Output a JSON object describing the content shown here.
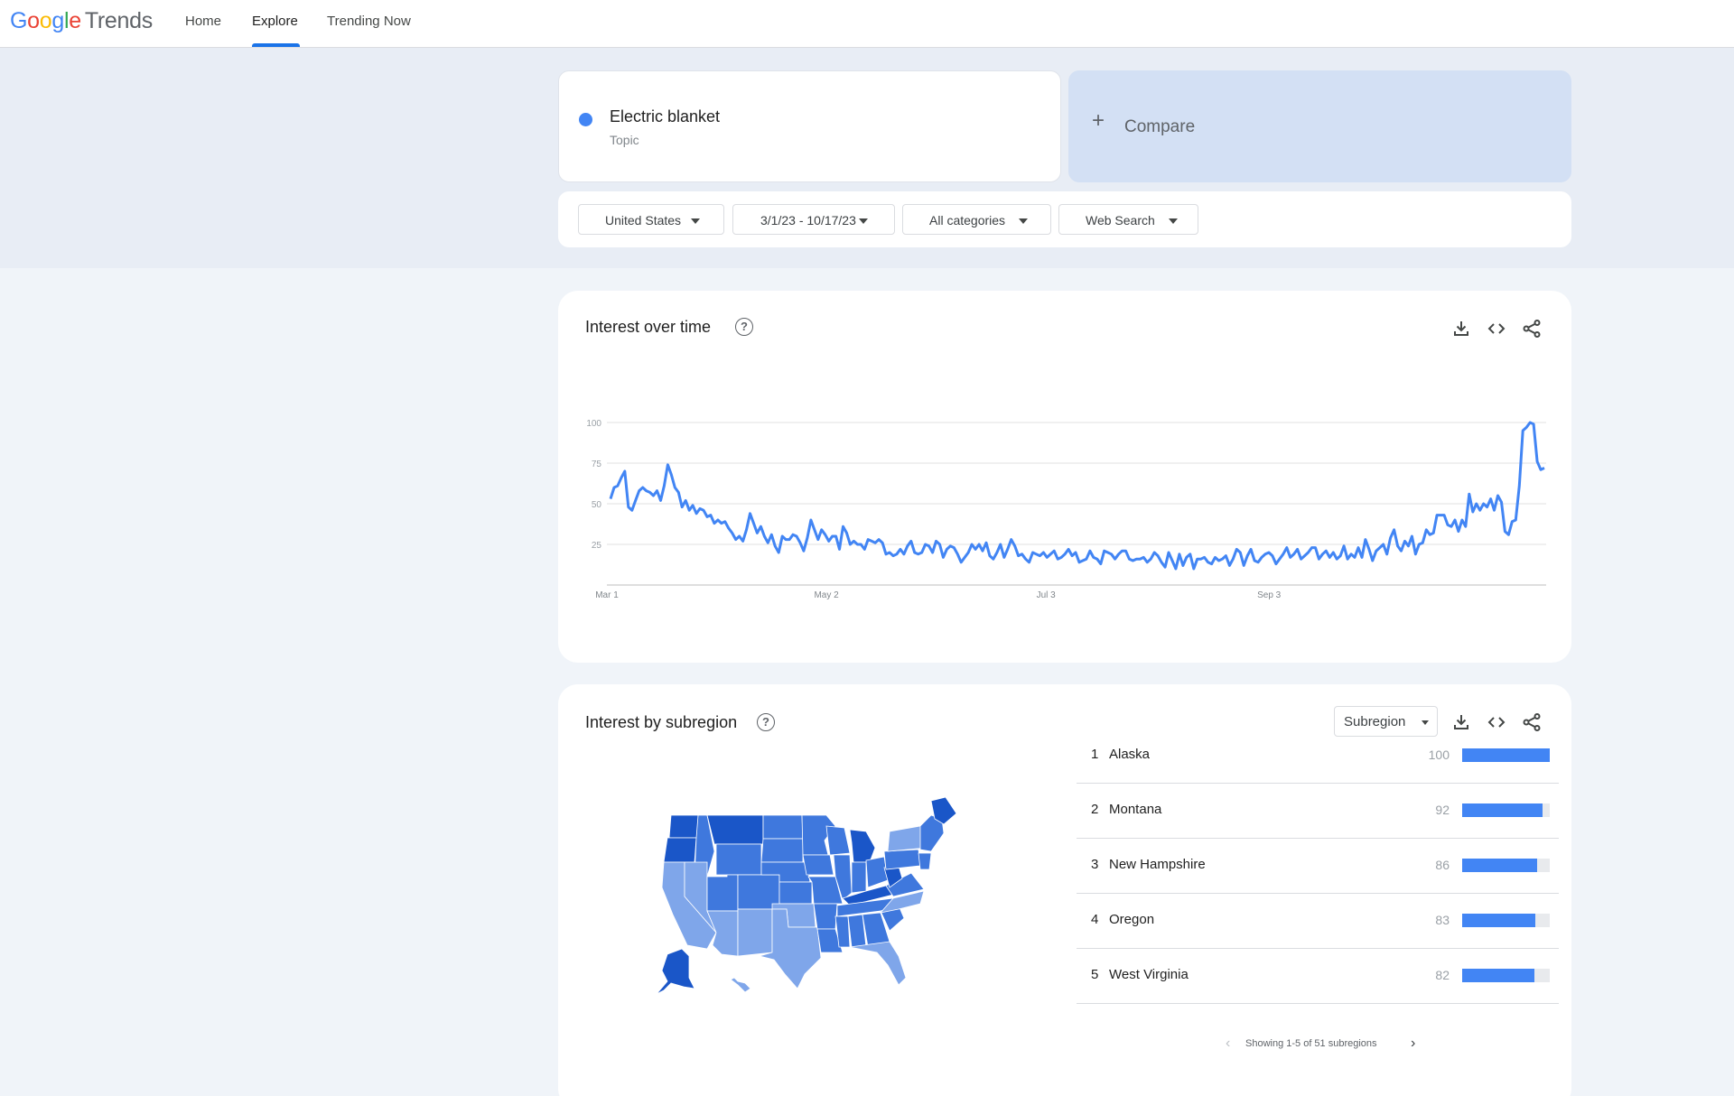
{
  "header": {
    "logo_google": "Google",
    "logo_product": "Trends",
    "nav": [
      "Home",
      "Explore",
      "Trending Now"
    ],
    "active_tab": "Explore"
  },
  "search": {
    "term": "Electric blanket",
    "term_type": "Topic",
    "term_color": "#4285f4",
    "compare_label": "Compare"
  },
  "filters": {
    "region": "United States",
    "date_range": "3/1/23 - 10/17/23",
    "category": "All categories",
    "search_type": "Web Search"
  },
  "interest_over_time": {
    "title": "Interest over time",
    "tools": [
      "download-icon",
      "embed-icon",
      "share-icon"
    ]
  },
  "chart_data": {
    "type": "line",
    "series": [
      {
        "color": "#4285f4",
        "values": [
          53,
          60,
          61,
          66,
          70,
          48,
          46,
          52,
          58,
          60,
          58,
          57,
          55,
          58,
          52,
          61,
          74,
          68,
          60,
          57,
          48,
          52,
          46,
          49,
          44,
          47,
          46,
          42,
          43,
          38,
          40,
          38,
          39,
          35,
          32,
          28,
          30,
          27,
          34,
          44,
          38,
          32,
          36,
          30,
          26,
          31,
          24,
          20,
          30,
          28,
          28,
          31,
          30,
          26,
          21,
          29,
          40,
          34,
          28,
          34,
          31,
          27,
          30,
          30,
          22,
          36,
          32,
          25,
          27,
          25,
          25,
          22,
          28,
          27,
          26,
          28,
          26,
          19,
          20,
          18,
          19,
          22,
          19,
          24,
          27,
          20,
          19,
          20,
          25,
          24,
          20,
          27,
          25,
          17,
          22,
          24,
          23,
          19,
          14,
          17,
          20,
          25,
          22,
          25,
          21,
          26,
          18,
          16,
          20,
          25,
          17,
          22,
          28,
          24,
          18,
          19,
          16,
          14,
          20,
          19,
          18,
          20,
          17,
          19,
          21,
          16,
          17,
          19,
          22,
          18,
          20,
          14,
          15,
          16,
          21,
          17,
          16,
          13,
          21,
          20,
          19,
          16,
          19,
          21,
          21,
          16,
          15,
          16,
          16,
          17,
          14,
          16,
          20,
          18,
          14,
          11,
          20,
          15,
          10,
          19,
          12,
          17,
          19,
          10,
          16,
          16,
          17,
          14,
          13,
          17,
          15,
          16,
          18,
          12,
          16,
          22,
          20,
          12,
          18,
          22,
          15,
          14,
          17,
          19,
          20,
          18,
          13,
          16,
          19,
          23,
          17,
          19,
          22,
          16,
          18,
          20,
          23,
          23,
          16,
          19,
          21,
          17,
          20,
          16,
          18,
          24,
          16,
          19,
          17,
          23,
          17,
          28,
          22,
          15,
          21,
          23,
          25,
          19,
          29,
          34,
          24,
          21,
          27,
          24,
          30,
          19,
          25,
          26,
          34,
          31,
          32,
          43,
          43,
          43,
          37,
          36,
          40,
          33,
          40,
          36,
          56,
          45,
          50,
          46,
          50,
          48,
          53,
          46,
          55,
          51,
          33,
          31,
          39,
          40,
          61,
          95,
          97,
          100,
          99,
          76,
          71,
          72
        ]
      }
    ],
    "x_tick_labels": [
      "Mar 1",
      "May 2",
      "Jul 3",
      "Sep 3"
    ],
    "y_tick_labels": [
      "100",
      "75",
      "50",
      "25"
    ],
    "ylim": [
      0,
      100
    ],
    "grid": true
  },
  "subregion": {
    "title": "Interest by subregion",
    "resolution_label": "Subregion",
    "tools": [
      "download-icon",
      "embed-icon",
      "share-icon"
    ],
    "rows": [
      {
        "rank": "1",
        "name": "Alaska",
        "value": "100",
        "fraction": 1.0
      },
      {
        "rank": "2",
        "name": "Montana",
        "value": "92",
        "fraction": 0.92
      },
      {
        "rank": "3",
        "name": "New Hampshire",
        "value": "86",
        "fraction": 0.86
      },
      {
        "rank": "4",
        "name": "Oregon",
        "value": "83",
        "fraction": 0.83
      },
      {
        "rank": "5",
        "name": "West Virginia",
        "value": "82",
        "fraction": 0.82
      }
    ],
    "pager_text": "Showing 1-5 of 51 subregions",
    "map_colors": {
      "high": "#1a56c8",
      "mid": "#3f78dd",
      "low": "#7fa6ea"
    }
  }
}
